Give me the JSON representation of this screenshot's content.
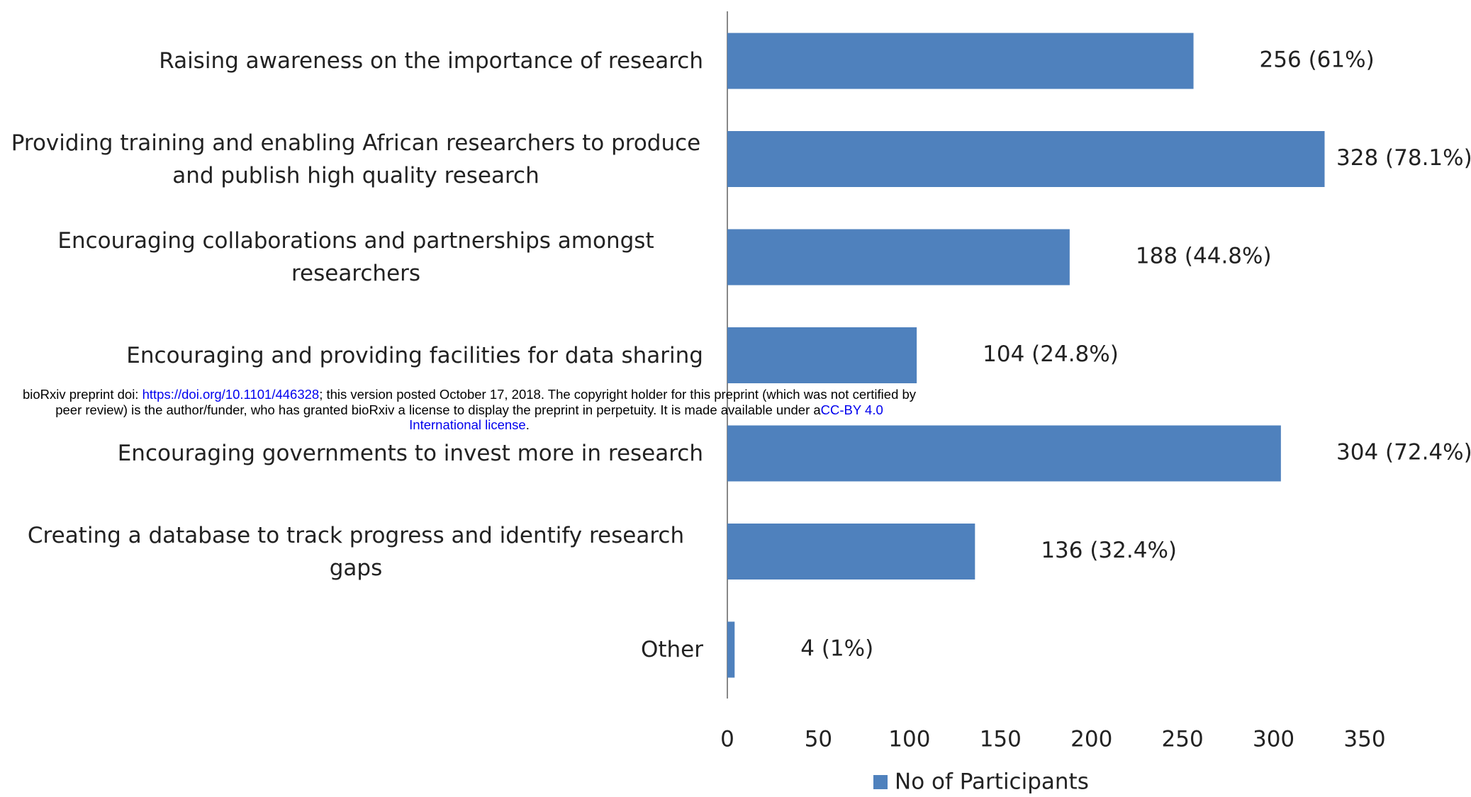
{
  "chart_data": {
    "type": "bar",
    "orientation": "horizontal",
    "categories": [
      "Raising awareness on the importance of research",
      "Providing training and enabling African researchers to produce and publish high quality research",
      "Encouraging collaborations and partnerships amongst researchers",
      "Encouraging and providing facilities for data sharing",
      "Encouraging governments to invest more in research",
      "Creating a database to track progress and identify research gaps",
      "Other"
    ],
    "series": [
      {
        "name": "No of Participants",
        "color": "#4f81bd",
        "values": [
          256,
          328,
          188,
          104,
          304,
          136,
          4
        ],
        "value_labels": [
          "256 (61%)",
          "328 (78.1%)",
          "188 (44.8%)",
          "104 (24.8%)",
          "304 (72.4%)",
          "136 (32.4%)",
          "4 (1%)"
        ]
      }
    ],
    "xlim": [
      0,
      350
    ],
    "xticks": [
      0,
      50,
      100,
      150,
      200,
      250,
      300,
      350
    ],
    "grid": false,
    "legend": "bottom"
  },
  "watermark": {
    "text1": "bioRxiv preprint doi: ",
    "doi": "https://doi.org/10.1101/446328",
    "text2": "; this version posted October 17, 2018. The copyright holder for this preprint (which was not certified by peer review) is the author/funder, who has granted bioRxiv a license to display the preprint in perpetuity. It is made available under a",
    "license": "CC-BY 4.0 International license",
    "text3": "."
  }
}
